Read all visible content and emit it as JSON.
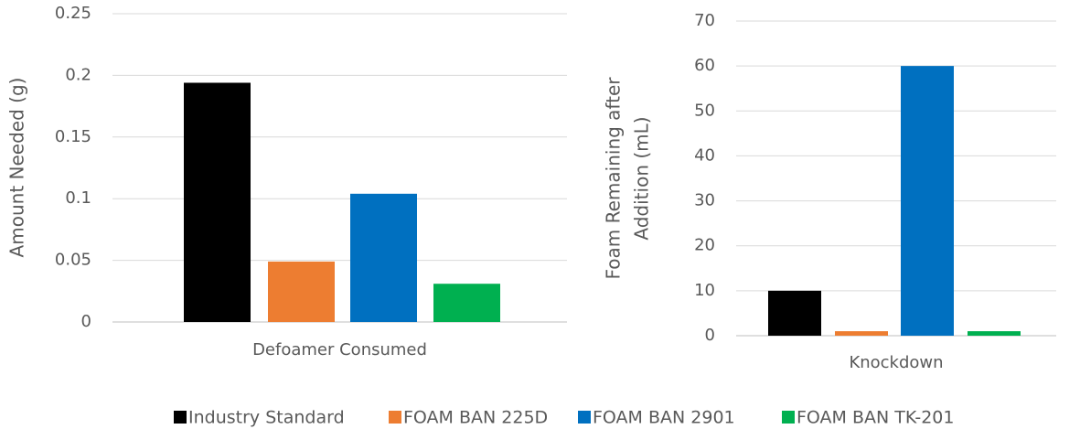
{
  "chart_data": [
    {
      "type": "bar",
      "y_label_lines": [
        "Amount Needed (g)"
      ],
      "categories": [
        "Defoamer Consumed"
      ],
      "series": [
        {
          "name": "Industry Standard",
          "color": "#000000",
          "values": [
            0.194
          ]
        },
        {
          "name": "FOAM BAN 225D",
          "color": "#ed7d31",
          "values": [
            0.049
          ]
        },
        {
          "name": "FOAM BAN 2901",
          "color": "#0070c0",
          "values": [
            0.104
          ]
        },
        {
          "name": "FOAM BAN TK-201",
          "color": "#00b050",
          "values": [
            0.031
          ]
        }
      ],
      "ylim": [
        0,
        0.25
      ],
      "yticks": [
        0,
        0.05,
        0.1,
        0.15,
        0.2,
        0.25
      ],
      "grid": true
    },
    {
      "type": "bar",
      "y_label_lines": [
        "Foam Remaining after",
        "Addition (mL)"
      ],
      "categories": [
        "Knockdown"
      ],
      "series": [
        {
          "color": "#000000",
          "values": [
            10
          ]
        },
        {
          "color": "#ed7d31",
          "values": [
            1
          ]
        },
        {
          "color": "#0070c0",
          "values": [
            60
          ]
        },
        {
          "color": "#00b050",
          "values": [
            1
          ]
        }
      ],
      "ylim": [
        0,
        70
      ],
      "yticks": [
        0,
        10,
        20,
        30,
        40,
        50,
        60,
        70
      ],
      "grid": true
    }
  ]
}
